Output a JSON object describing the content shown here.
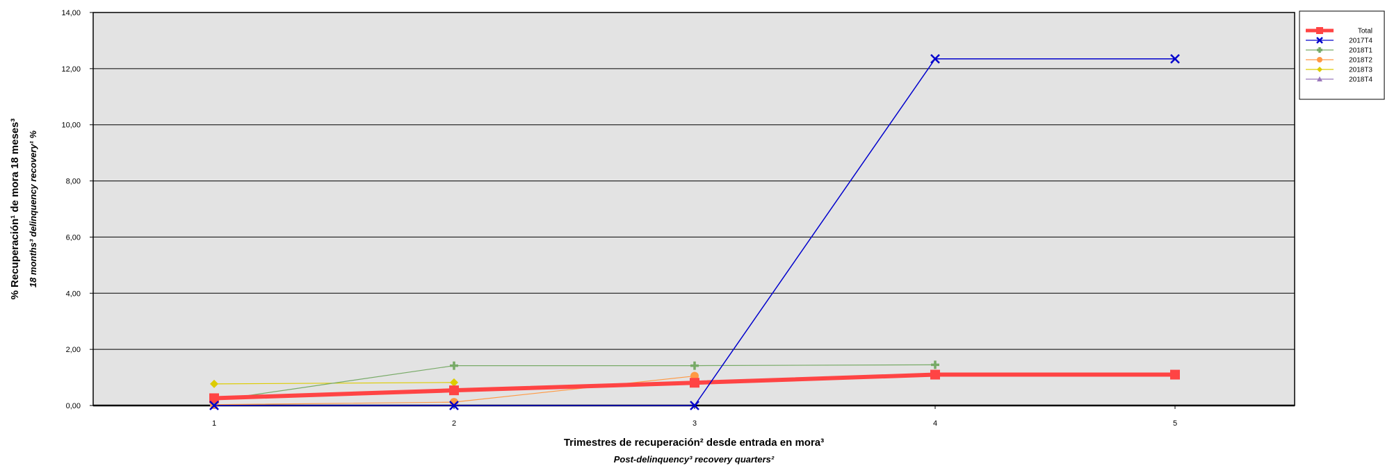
{
  "chart_data": {
    "type": "line",
    "xlabel": "Trimestres de recuperación² desde entrada en mora³",
    "xlabel_sub": "Post-delinquency³ recovery quarters²",
    "ylabel": "% Recuperación¹ de mora 18 meses³",
    "ylabel_sub": "18 months³ delinquency recovery¹ %",
    "x_categories": [
      "1",
      "2",
      "3",
      "4",
      "5"
    ],
    "ylim": [
      0,
      14
    ],
    "y_ticks": [
      "0,00",
      "2,00",
      "4,00",
      "6,00",
      "8,00",
      "10,00",
      "12,00",
      "14,00"
    ],
    "grid": "horizontal",
    "legend_position": "right",
    "series": [
      {
        "name": "Total",
        "color": "#ff4444",
        "marker": "square",
        "values": [
          0.26,
          0.54,
          0.81,
          1.1,
          1.1
        ]
      },
      {
        "name": "2017T4",
        "color": "#0000cc",
        "marker": "x",
        "values": [
          0.0,
          0.0,
          0.0,
          12.35,
          12.35
        ]
      },
      {
        "name": "2018T1",
        "color": "#77aa66",
        "marker": "plus",
        "values": [
          0.18,
          1.42,
          1.42,
          1.45,
          null
        ]
      },
      {
        "name": "2018T2",
        "color": "#ff9944",
        "marker": "circle",
        "values": [
          0.03,
          0.12,
          1.05,
          null,
          null
        ]
      },
      {
        "name": "2018T3",
        "color": "#ddcc00",
        "marker": "diamond",
        "values": [
          0.77,
          0.82,
          null,
          null,
          null
        ]
      },
      {
        "name": "2018T4",
        "color": "#9977bb",
        "marker": "triangle",
        "values": [
          0.0,
          null,
          null,
          null,
          null
        ]
      }
    ]
  }
}
